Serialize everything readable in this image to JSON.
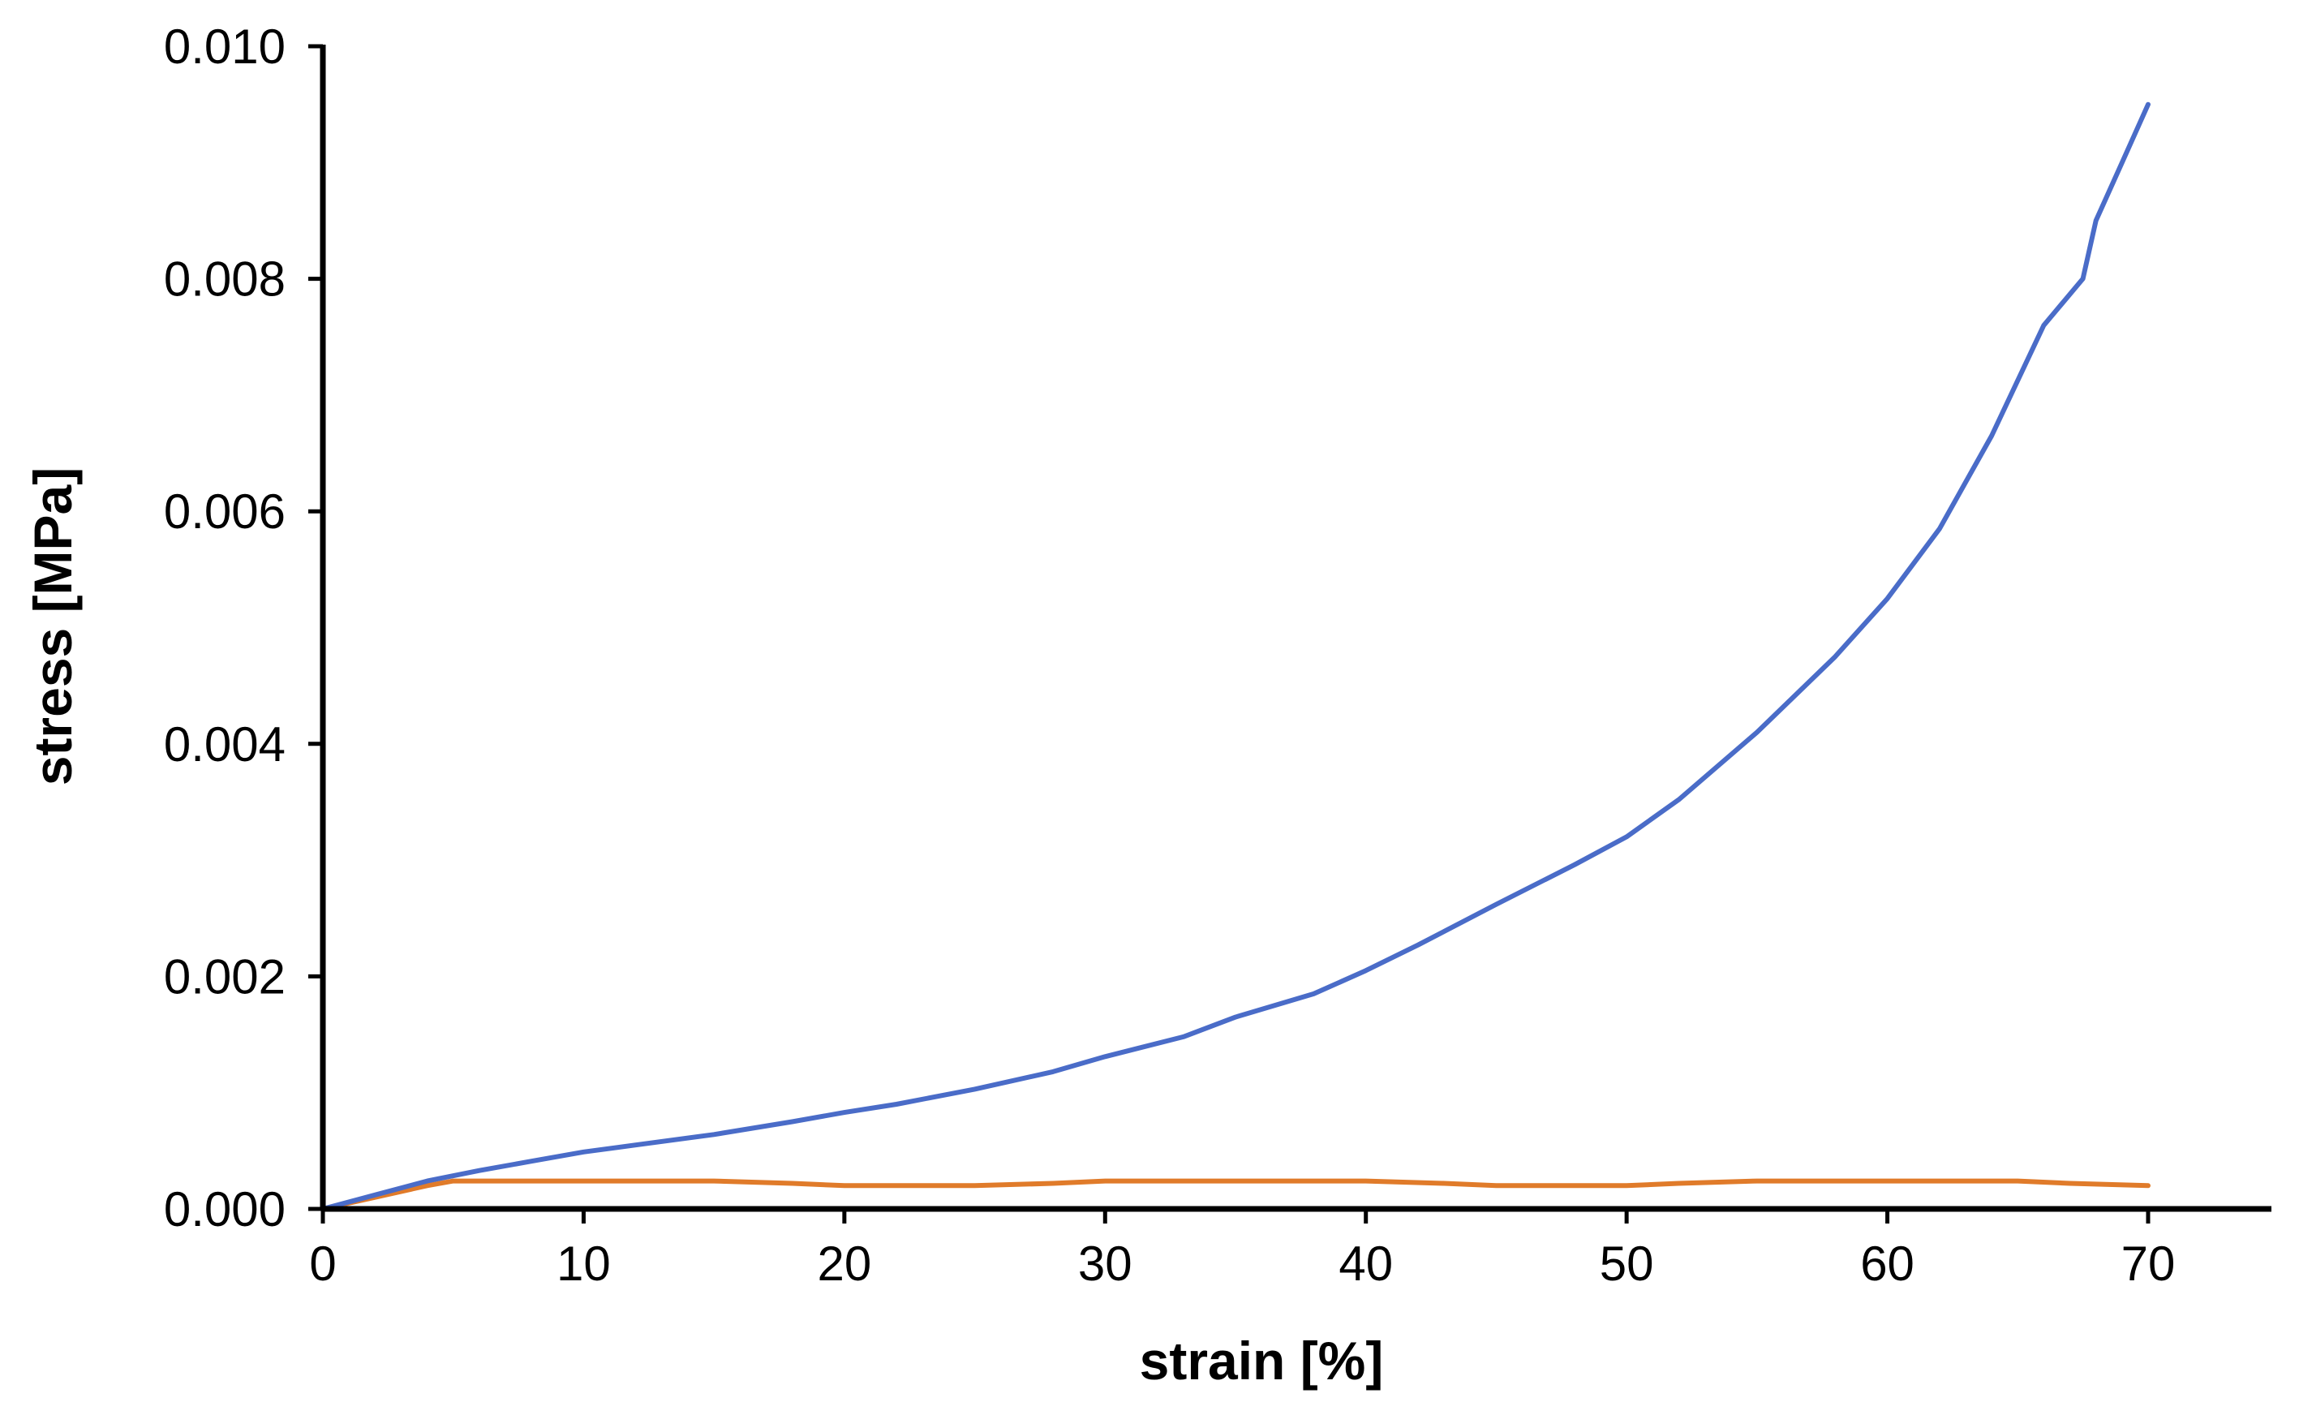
{
  "chart_data": {
    "type": "line",
    "xlabel": "strain [%]",
    "ylabel": "stress [MPa]",
    "xlim": [
      0,
      75
    ],
    "ylim": [
      0,
      0.01
    ],
    "xticks": [
      0,
      10,
      20,
      30,
      40,
      50,
      60,
      70
    ],
    "xtick_labels": [
      "0",
      "10",
      "20",
      "30",
      "40",
      "50",
      "60",
      "70"
    ],
    "yticks": [
      0,
      0.002,
      0.004,
      0.006,
      0.008,
      0.01
    ],
    "ytick_labels": [
      "0.000",
      "0.002",
      "0.004",
      "0.006",
      "0.008",
      "0.010"
    ],
    "grid": false,
    "legend": "none",
    "series": [
      {
        "color": "#4A6CC8",
        "x": [
          0,
          2,
          4,
          6,
          8,
          10,
          12,
          15,
          18,
          20,
          22,
          25,
          28,
          30,
          33,
          35,
          38,
          40,
          42,
          45,
          48,
          50,
          52,
          55,
          58,
          60,
          62,
          64,
          66,
          67.5,
          68,
          69,
          70
        ],
        "y": [
          0,
          0.00012,
          0.00024,
          0.00033,
          0.00041,
          0.00049,
          0.00055,
          0.00064,
          0.00075,
          0.00083,
          0.0009,
          0.00103,
          0.00118,
          0.00131,
          0.00148,
          0.00165,
          0.00185,
          0.00205,
          0.00227,
          0.00262,
          0.00296,
          0.0032,
          0.00352,
          0.0041,
          0.00475,
          0.00525,
          0.00585,
          0.00665,
          0.0076,
          0.008,
          0.0085,
          0.009,
          0.0095
        ]
      },
      {
        "color": "#E07B2A",
        "x": [
          0,
          2,
          4,
          5,
          10,
          15,
          18,
          20,
          25,
          28,
          30,
          35,
          40,
          43,
          45,
          50,
          52,
          55,
          60,
          65,
          67,
          70
        ],
        "y": [
          0,
          0.0001,
          0.0002,
          0.00024,
          0.00024,
          0.00024,
          0.00022,
          0.0002,
          0.0002,
          0.00022,
          0.00024,
          0.00024,
          0.00024,
          0.00022,
          0.0002,
          0.0002,
          0.00022,
          0.00024,
          0.00024,
          0.00024,
          0.00022,
          0.0002
        ]
      }
    ]
  }
}
